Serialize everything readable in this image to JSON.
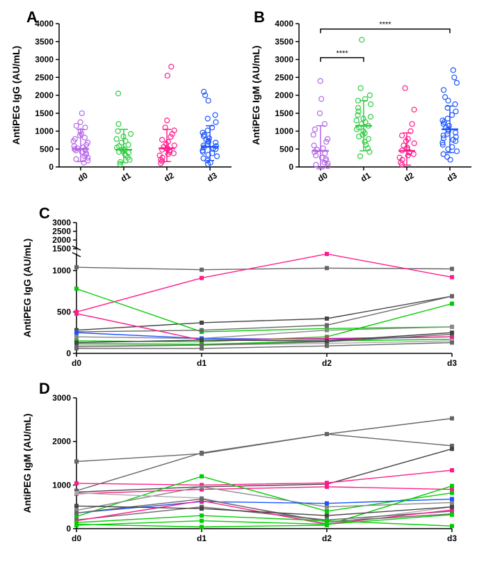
{
  "panelA": {
    "label": "A",
    "type": "scatter-column",
    "ylabel": "AntiPEG IgG (AU/mL)",
    "ylim": [
      0,
      4000
    ],
    "ytick_step": 500,
    "categories": [
      "d0",
      "d1",
      "d2",
      "d3"
    ],
    "colors": [
      "#b266e6",
      "#2ecc40",
      "#ff1a8c",
      "#1a53ff"
    ],
    "jitter_spread": 0.35,
    "marker_size": 3.5,
    "medians": [
      500,
      480,
      520,
      560
    ],
    "error_lo": [
      150,
      120,
      150,
      180
    ],
    "error_hi": [
      1050,
      1050,
      1050,
      1150
    ],
    "points": [
      [
        120,
        180,
        220,
        260,
        300,
        340,
        380,
        420,
        460,
        480,
        500,
        520,
        550,
        580,
        620,
        680,
        720,
        780,
        820,
        880,
        920,
        1000,
        1100,
        1150,
        1250,
        1500
      ],
      [
        80,
        140,
        200,
        260,
        320,
        360,
        400,
        420,
        450,
        480,
        500,
        540,
        580,
        620,
        680,
        720,
        780,
        850,
        920,
        1000,
        1200,
        2050
      ],
      [
        100,
        160,
        200,
        260,
        320,
        360,
        380,
        420,
        460,
        480,
        500,
        520,
        560,
        600,
        640,
        700,
        760,
        840,
        920,
        1020,
        1100,
        1300,
        2550,
        2800
      ],
      [
        80,
        120,
        180,
        240,
        300,
        340,
        380,
        420,
        460,
        500,
        520,
        540,
        580,
        600,
        640,
        680,
        700,
        720,
        760,
        800,
        860,
        900,
        960,
        1020,
        1100,
        1250,
        1350,
        1450,
        1850,
        2000,
        2100
      ]
    ]
  },
  "panelB": {
    "label": "B",
    "type": "scatter-column",
    "ylabel": "AntiPEG IgM (AU/mL)",
    "ylim": [
      0,
      4000
    ],
    "ytick_step": 500,
    "categories": [
      "d0",
      "d1",
      "d2",
      "d3"
    ],
    "colors": [
      "#b266e6",
      "#2ecc40",
      "#ff1a8c",
      "#1a53ff"
    ],
    "jitter_spread": 0.35,
    "marker_size": 3.5,
    "medians": [
      450,
      1150,
      450,
      1050
    ],
    "error_lo": [
      -50,
      450,
      50,
      400
    ],
    "error_hi": [
      1150,
      1850,
      950,
      1700
    ],
    "points": [
      [
        20,
        60,
        100,
        120,
        180,
        220,
        260,
        320,
        380,
        420,
        480,
        520,
        600,
        700,
        780,
        900,
        1050,
        1200,
        1500,
        1900,
        2400
      ],
      [
        300,
        420,
        520,
        620,
        700,
        780,
        850,
        900,
        940,
        1000,
        1050,
        1100,
        1150,
        1200,
        1250,
        1300,
        1350,
        1400,
        1450,
        1550,
        1650,
        1750,
        1850,
        1900,
        2000,
        2200,
        3550
      ],
      [
        60,
        120,
        200,
        260,
        320,
        360,
        400,
        420,
        460,
        500,
        540,
        600,
        660,
        720,
        780,
        880,
        1000,
        1200,
        1600,
        2200
      ],
      [
        200,
        280,
        360,
        440,
        500,
        560,
        620,
        680,
        720,
        760,
        800,
        840,
        880,
        920,
        960,
        1000,
        1050,
        1100,
        1150,
        1200,
        1250,
        1300,
        1350,
        1450,
        1550,
        1650,
        1750,
        1850,
        1950,
        2150,
        2350,
        2500,
        2700
      ]
    ],
    "sig_bars": [
      {
        "from": 0,
        "to": 1,
        "y": 3050,
        "label": "****"
      },
      {
        "from": 0,
        "to": 3,
        "y": 3850,
        "label": "****"
      }
    ]
  },
  "panelC": {
    "label": "C",
    "type": "line-individuals",
    "ylabel": "AntiPEG IgG (AU/mL)",
    "broken_low_lim": [
      0,
      1200
    ],
    "broken_low_ticks": [
      0,
      500,
      1000
    ],
    "broken_high_lim": [
      1500,
      3000
    ],
    "broken_high_ticks": [
      1500,
      2000,
      2500,
      3000
    ],
    "categories": [
      "d0",
      "d1",
      "d2",
      "d3"
    ],
    "colors_palette": [
      "#666666",
      "#666666",
      "#444444",
      "#00cc00",
      "#ff1a8c",
      "#00cc00",
      "#1a53ff",
      "#666666",
      "#ff1a8c",
      "#888888",
      "#00d000",
      "#aaaaaa",
      "#666666",
      "#444444"
    ],
    "series": [
      {
        "color_idx": 0,
        "y": [
          1040,
          1010,
          1030,
          1020
        ]
      },
      {
        "color_idx": 4,
        "y": [
          500,
          910,
          1200,
          920
        ]
      },
      {
        "color_idx": 2,
        "y": [
          280,
          370,
          420,
          690
        ]
      },
      {
        "color_idx": 3,
        "y": [
          780,
          260,
          300,
          320
        ]
      },
      {
        "color_idx": 7,
        "y": [
          260,
          280,
          340,
          690
        ]
      },
      {
        "color_idx": 9,
        "y": [
          200,
          180,
          280,
          320
        ]
      },
      {
        "color_idx": 6,
        "y": [
          250,
          180,
          170,
          200
        ]
      },
      {
        "color_idx": 5,
        "y": [
          150,
          140,
          200,
          600
        ]
      },
      {
        "color_idx": 10,
        "y": [
          120,
          110,
          150,
          170
        ]
      },
      {
        "color_idx": 11,
        "y": [
          100,
          100,
          120,
          150
        ]
      },
      {
        "color_idx": 8,
        "y": [
          480,
          160,
          180,
          200
        ]
      },
      {
        "color_idx": 12,
        "y": [
          80,
          100,
          140,
          230
        ]
      },
      {
        "color_idx": 1,
        "y": [
          60,
          60,
          90,
          130
        ]
      },
      {
        "color_idx": 13,
        "y": [
          130,
          160,
          150,
          250
        ]
      }
    ]
  },
  "panelD": {
    "label": "D",
    "type": "line-individuals",
    "ylabel": "AntiPEG IgM (AU/mL)",
    "ylim": [
      0,
      3000
    ],
    "ytick_step": 1000,
    "categories": [
      "d0",
      "d1",
      "d2",
      "d3"
    ],
    "colors_palette": [
      "#666666",
      "#666666",
      "#444444",
      "#00cc00",
      "#ff1a8c",
      "#00cc00",
      "#1a53ff",
      "#666666",
      "#ff1a8c",
      "#888888",
      "#00d000",
      "#aaaaaa",
      "#666666",
      "#444444",
      "#ff1a8c",
      "#00cc00"
    ],
    "series": [
      {
        "color_idx": 0,
        "y": [
          1540,
          1720,
          2170,
          2530
        ]
      },
      {
        "color_idx": 7,
        "y": [
          870,
          1740,
          2170,
          1900
        ]
      },
      {
        "color_idx": 2,
        "y": [
          840,
          960,
          1020,
          1830
        ]
      },
      {
        "color_idx": 4,
        "y": [
          1040,
          1000,
          1050,
          1340
        ]
      },
      {
        "color_idx": 14,
        "y": [
          800,
          900,
          960,
          900
        ]
      },
      {
        "color_idx": 3,
        "y": [
          280,
          1200,
          400,
          820
        ]
      },
      {
        "color_idx": 9,
        "y": [
          420,
          960,
          500,
          600
        ]
      },
      {
        "color_idx": 6,
        "y": [
          360,
          620,
          580,
          680
        ]
      },
      {
        "color_idx": 5,
        "y": [
          100,
          40,
          80,
          980
        ]
      },
      {
        "color_idx": 11,
        "y": [
          820,
          700,
          120,
          500
        ]
      },
      {
        "color_idx": 12,
        "y": [
          200,
          500,
          200,
          400
        ]
      },
      {
        "color_idx": 8,
        "y": [
          180,
          640,
          100,
          430
        ]
      },
      {
        "color_idx": 1,
        "y": [
          360,
          680,
          160,
          340
        ]
      },
      {
        "color_idx": 15,
        "y": [
          140,
          300,
          180,
          60
        ]
      },
      {
        "color_idx": 10,
        "y": [
          80,
          180,
          100,
          320
        ]
      },
      {
        "color_idx": 13,
        "y": [
          520,
          460,
          300,
          500
        ]
      }
    ]
  }
}
